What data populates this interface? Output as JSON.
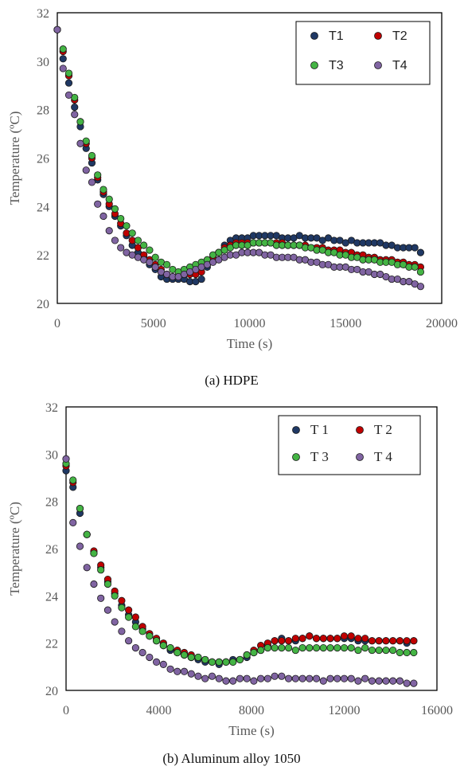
{
  "colors": {
    "T1": "#1f3864",
    "T2": "#c00000",
    "T3": "#44b444",
    "T4": "#8064a2"
  },
  "chart_data": [
    {
      "type": "scatter",
      "caption": "(a) HDPE",
      "xlabel": "Time (s)",
      "ylabel": "Temperature (ºC)",
      "xlim": [
        0,
        20000
      ],
      "ylim": [
        20,
        32
      ],
      "xticks": [
        "0",
        "5000",
        "10000",
        "15000",
        "20000"
      ],
      "yticks": [
        "20",
        "22",
        "24",
        "26",
        "28",
        "30",
        "32"
      ],
      "xtick_values": [
        0,
        5000,
        10000,
        15000,
        20000
      ],
      "ytick_values": [
        20,
        22,
        24,
        26,
        28,
        30,
        32
      ],
      "legend_position": "top-right",
      "series": [
        {
          "name": "T1",
          "color_key": "T1",
          "x": [
            0,
            300,
            600,
            900,
            1200,
            1500,
            1800,
            2100,
            2400,
            2700,
            3000,
            3300,
            3600,
            3900,
            4200,
            4500,
            4800,
            5100,
            5400,
            5700,
            6000,
            6300,
            6600,
            6900,
            7200,
            7500,
            7800,
            8100,
            8400,
            8700,
            9000,
            9300,
            9600,
            9900,
            10200,
            10500,
            10800,
            11100,
            11400,
            11700,
            12000,
            12300,
            12600,
            12900,
            13200,
            13500,
            13800,
            14100,
            14400,
            14700,
            15000,
            15300,
            15600,
            15900,
            16200,
            16500,
            16800,
            17100,
            17400,
            17700,
            18000,
            18300,
            18600,
            18900
          ],
          "y": [
            31.3,
            30.1,
            29.1,
            28.1,
            27.3,
            26.4,
            25.8,
            25.1,
            24.5,
            24.0,
            23.6,
            23.2,
            22.8,
            22.4,
            22.1,
            21.9,
            21.6,
            21.4,
            21.1,
            21.0,
            21.0,
            21.0,
            21.0,
            20.9,
            20.9,
            21.0,
            21.5,
            21.8,
            22.1,
            22.4,
            22.6,
            22.7,
            22.7,
            22.7,
            22.8,
            22.8,
            22.8,
            22.8,
            22.8,
            22.7,
            22.7,
            22.7,
            22.8,
            22.7,
            22.7,
            22.7,
            22.6,
            22.7,
            22.6,
            22.6,
            22.5,
            22.6,
            22.5,
            22.5,
            22.5,
            22.5,
            22.5,
            22.4,
            22.4,
            22.3,
            22.3,
            22.3,
            22.3,
            22.1
          ]
        },
        {
          "name": "T2",
          "color_key": "T2",
          "x": [
            0,
            300,
            600,
            900,
            1200,
            1500,
            1800,
            2100,
            2400,
            2700,
            3000,
            3300,
            3600,
            3900,
            4200,
            4500,
            4800,
            5100,
            5400,
            5700,
            6000,
            6300,
            6600,
            6900,
            7200,
            7500,
            7800,
            8100,
            8400,
            8700,
            9000,
            9300,
            9600,
            9900,
            10200,
            10500,
            10800,
            11100,
            11400,
            11700,
            12000,
            12300,
            12600,
            12900,
            13200,
            13500,
            13800,
            14100,
            14400,
            14700,
            15000,
            15300,
            15600,
            15900,
            16200,
            16500,
            16800,
            17100,
            17400,
            17700,
            18000,
            18300,
            18600,
            18900
          ],
          "y": [
            31.3,
            30.4,
            29.4,
            28.4,
            27.5,
            26.6,
            26.0,
            25.2,
            24.6,
            24.1,
            23.7,
            23.3,
            22.9,
            22.6,
            22.3,
            22.0,
            21.8,
            21.6,
            21.4,
            21.2,
            21.1,
            21.1,
            21.2,
            21.2,
            21.2,
            21.3,
            21.6,
            21.9,
            22.1,
            22.3,
            22.4,
            22.5,
            22.5,
            22.5,
            22.5,
            22.5,
            22.5,
            22.5,
            22.5,
            22.5,
            22.4,
            22.4,
            22.4,
            22.4,
            22.3,
            22.3,
            22.3,
            22.2,
            22.2,
            22.2,
            22.1,
            22.1,
            22.0,
            22.0,
            21.9,
            21.9,
            21.8,
            21.8,
            21.8,
            21.7,
            21.7,
            21.6,
            21.6,
            21.5
          ]
        },
        {
          "name": "T3",
          "color_key": "T3",
          "x": [
            0,
            300,
            600,
            900,
            1200,
            1500,
            1800,
            2100,
            2400,
            2700,
            3000,
            3300,
            3600,
            3900,
            4200,
            4500,
            4800,
            5100,
            5400,
            5700,
            6000,
            6300,
            6600,
            6900,
            7200,
            7500,
            7800,
            8100,
            8400,
            8700,
            9000,
            9300,
            9600,
            9900,
            10200,
            10500,
            10800,
            11100,
            11400,
            11700,
            12000,
            12300,
            12600,
            12900,
            13200,
            13500,
            13800,
            14100,
            14400,
            14700,
            15000,
            15300,
            15600,
            15900,
            16200,
            16500,
            16800,
            17100,
            17400,
            17700,
            18000,
            18300,
            18600,
            18900
          ],
          "y": [
            31.3,
            30.5,
            29.5,
            28.5,
            27.5,
            26.7,
            26.1,
            25.3,
            24.7,
            24.3,
            23.9,
            23.5,
            23.2,
            22.9,
            22.6,
            22.4,
            22.2,
            21.9,
            21.7,
            21.6,
            21.4,
            21.3,
            21.4,
            21.5,
            21.6,
            21.7,
            21.8,
            22.0,
            22.1,
            22.2,
            22.3,
            22.4,
            22.4,
            22.4,
            22.5,
            22.5,
            22.5,
            22.5,
            22.4,
            22.4,
            22.4,
            22.4,
            22.4,
            22.3,
            22.3,
            22.2,
            22.2,
            22.1,
            22.1,
            22.0,
            22.0,
            21.9,
            21.9,
            21.8,
            21.8,
            21.8,
            21.7,
            21.7,
            21.7,
            21.6,
            21.6,
            21.5,
            21.5,
            21.3
          ]
        },
        {
          "name": "T4",
          "color_key": "T4",
          "x": [
            0,
            300,
            600,
            900,
            1200,
            1500,
            1800,
            2100,
            2400,
            2700,
            3000,
            3300,
            3600,
            3900,
            4200,
            4500,
            4800,
            5100,
            5400,
            5700,
            6000,
            6300,
            6600,
            6900,
            7200,
            7500,
            7800,
            8100,
            8400,
            8700,
            9000,
            9300,
            9600,
            9900,
            10200,
            10500,
            10800,
            11100,
            11400,
            11700,
            12000,
            12300,
            12600,
            12900,
            13200,
            13500,
            13800,
            14100,
            14400,
            14700,
            15000,
            15300,
            15600,
            15900,
            16200,
            16500,
            16800,
            17100,
            17400,
            17700,
            18000,
            18300,
            18600,
            18900
          ],
          "y": [
            31.3,
            29.7,
            28.6,
            27.8,
            26.6,
            25.5,
            25.0,
            24.1,
            23.6,
            23.0,
            22.6,
            22.3,
            22.1,
            22.0,
            21.9,
            21.8,
            21.7,
            21.5,
            21.3,
            21.2,
            21.1,
            21.1,
            21.2,
            21.3,
            21.4,
            21.5,
            21.6,
            21.7,
            21.8,
            21.9,
            22.0,
            22.0,
            22.1,
            22.1,
            22.1,
            22.1,
            22.0,
            22.0,
            21.9,
            21.9,
            21.9,
            21.9,
            21.8,
            21.8,
            21.7,
            21.7,
            21.6,
            21.6,
            21.5,
            21.5,
            21.5,
            21.4,
            21.4,
            21.3,
            21.3,
            21.2,
            21.2,
            21.1,
            21.0,
            21.0,
            20.9,
            20.9,
            20.8,
            20.7
          ]
        }
      ],
      "legend": [
        "T1",
        "T2",
        "T3",
        "T4"
      ]
    },
    {
      "type": "scatter",
      "caption": "(b) Aluminum alloy 1050",
      "xlabel": "Time (s)",
      "ylabel": "Temperature (ºC)",
      "xlim": [
        0,
        16000
      ],
      "ylim": [
        20,
        32
      ],
      "xticks": [
        "0",
        "4000",
        "8000",
        "12000",
        "16000"
      ],
      "yticks": [
        "20",
        "22",
        "24",
        "26",
        "28",
        "30",
        "32"
      ],
      "xtick_values": [
        0,
        4000,
        8000,
        12000,
        16000
      ],
      "ytick_values": [
        20,
        22,
        24,
        26,
        28,
        30,
        32
      ],
      "legend_position": "top-right",
      "series": [
        {
          "name": "T 1",
          "color_key": "T1",
          "x": [
            0,
            300,
            600,
            900,
            1200,
            1500,
            1800,
            2100,
            2400,
            2700,
            3000,
            3300,
            3600,
            3900,
            4200,
            4500,
            4800,
            5100,
            5400,
            5700,
            6000,
            6300,
            6600,
            6900,
            7200,
            7500,
            7800,
            8100,
            8400,
            8700,
            9000,
            9300,
            9600,
            9900,
            10200,
            10500,
            10800,
            11100,
            11400,
            11700,
            12000,
            12300,
            12600,
            12900,
            13200,
            13500,
            13800,
            14100,
            14400,
            14700,
            15000
          ],
          "y": [
            29.3,
            28.6,
            27.5,
            26.6,
            25.8,
            25.2,
            24.6,
            24.1,
            23.6,
            23.2,
            22.9,
            22.6,
            22.3,
            22.1,
            21.9,
            21.7,
            21.6,
            21.5,
            21.4,
            21.3,
            21.2,
            21.2,
            21.1,
            21.2,
            21.3,
            21.3,
            21.4,
            21.6,
            21.7,
            21.9,
            22.1,
            22.2,
            22.1,
            22.1,
            22.2,
            22.3,
            22.2,
            22.2,
            22.2,
            22.2,
            22.2,
            22.2,
            22.1,
            22.1,
            22.1,
            22.1,
            22.1,
            22.1,
            22.1,
            22.0,
            22.1
          ]
        },
        {
          "name": "T 2",
          "color_key": "T2",
          "x": [
            0,
            300,
            600,
            900,
            1200,
            1500,
            1800,
            2100,
            2400,
            2700,
            3000,
            3300,
            3600,
            3900,
            4200,
            4500,
            4800,
            5100,
            5400,
            5700,
            6000,
            6300,
            6600,
            6900,
            7200,
            7500,
            7800,
            8100,
            8400,
            8700,
            9000,
            9300,
            9600,
            9900,
            10200,
            10500,
            10800,
            11100,
            11400,
            11700,
            12000,
            12300,
            12600,
            12900,
            13200,
            13500,
            13800,
            14100,
            14400,
            14700,
            15000
          ],
          "y": [
            29.5,
            28.8,
            27.7,
            26.6,
            25.9,
            25.3,
            24.7,
            24.2,
            23.8,
            23.4,
            23.1,
            22.7,
            22.4,
            22.2,
            22.0,
            21.8,
            21.7,
            21.6,
            21.5,
            21.4,
            21.3,
            21.2,
            21.2,
            21.2,
            21.2,
            21.3,
            21.5,
            21.7,
            21.9,
            22.0,
            22.1,
            22.1,
            22.1,
            22.2,
            22.2,
            22.3,
            22.2,
            22.2,
            22.2,
            22.2,
            22.3,
            22.3,
            22.2,
            22.2,
            22.1,
            22.1,
            22.1,
            22.1,
            22.1,
            22.1,
            22.1
          ]
        },
        {
          "name": "T 3",
          "color_key": "T3",
          "x": [
            0,
            300,
            600,
            900,
            1200,
            1500,
            1800,
            2100,
            2400,
            2700,
            3000,
            3300,
            3600,
            3900,
            4200,
            4500,
            4800,
            5100,
            5400,
            5700,
            6000,
            6300,
            6600,
            6900,
            7200,
            7500,
            7800,
            8100,
            8400,
            8700,
            9000,
            9300,
            9600,
            9900,
            10200,
            10500,
            10800,
            11100,
            11400,
            11700,
            12000,
            12300,
            12600,
            12900,
            13200,
            13500,
            13800,
            14100,
            14400,
            14700,
            15000
          ],
          "y": [
            29.6,
            28.9,
            27.7,
            26.6,
            25.8,
            25.1,
            24.5,
            24.0,
            23.5,
            23.1,
            22.7,
            22.5,
            22.3,
            22.1,
            21.9,
            21.8,
            21.6,
            21.5,
            21.4,
            21.4,
            21.3,
            21.2,
            21.2,
            21.2,
            21.2,
            21.3,
            21.5,
            21.6,
            21.7,
            21.8,
            21.8,
            21.8,
            21.8,
            21.7,
            21.8,
            21.8,
            21.8,
            21.8,
            21.8,
            21.8,
            21.8,
            21.8,
            21.7,
            21.8,
            21.7,
            21.7,
            21.7,
            21.7,
            21.6,
            21.6,
            21.6
          ]
        },
        {
          "name": "T 4",
          "color_key": "T4",
          "x": [
            0,
            300,
            600,
            900,
            1200,
            1500,
            1800,
            2100,
            2400,
            2700,
            3000,
            3300,
            3600,
            3900,
            4200,
            4500,
            4800,
            5100,
            5400,
            5700,
            6000,
            6300,
            6600,
            6900,
            7200,
            7500,
            7800,
            8100,
            8400,
            8700,
            9000,
            9300,
            9600,
            9900,
            10200,
            10500,
            10800,
            11100,
            11400,
            11700,
            12000,
            12300,
            12600,
            12900,
            13200,
            13500,
            13800,
            14100,
            14400,
            14700,
            15000
          ],
          "y": [
            29.8,
            27.1,
            26.1,
            25.2,
            24.5,
            23.9,
            23.4,
            22.9,
            22.5,
            22.1,
            21.8,
            21.6,
            21.4,
            21.2,
            21.1,
            20.9,
            20.8,
            20.8,
            20.7,
            20.6,
            20.5,
            20.6,
            20.5,
            20.4,
            20.4,
            20.5,
            20.5,
            20.4,
            20.5,
            20.5,
            20.6,
            20.6,
            20.5,
            20.5,
            20.5,
            20.5,
            20.5,
            20.4,
            20.5,
            20.5,
            20.5,
            20.5,
            20.4,
            20.5,
            20.4,
            20.4,
            20.4,
            20.4,
            20.4,
            20.3,
            20.3
          ]
        }
      ],
      "legend": [
        "T 1",
        "T 2",
        "T 3",
        "T 4"
      ]
    }
  ]
}
